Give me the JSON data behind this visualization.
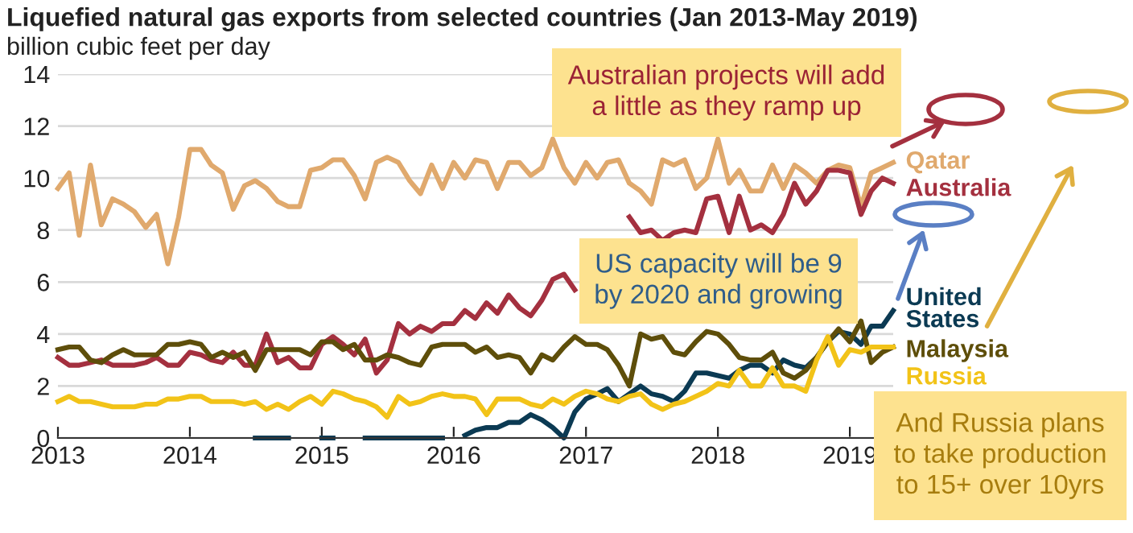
{
  "chart_data": {
    "type": "line",
    "title": "Liquefied natural gas exports from selected countries (Jan 2013-May 2019)",
    "ylabel": "billion cubic feet per day",
    "x": [
      "2013-01",
      "2013-02",
      "2013-03",
      "2013-04",
      "2013-05",
      "2013-06",
      "2013-07",
      "2013-08",
      "2013-09",
      "2013-10",
      "2013-11",
      "2013-12",
      "2014-01",
      "2014-02",
      "2014-03",
      "2014-04",
      "2014-05",
      "2014-06",
      "2014-07",
      "2014-08",
      "2014-09",
      "2014-10",
      "2014-11",
      "2014-12",
      "2015-01",
      "2015-02",
      "2015-03",
      "2015-04",
      "2015-05",
      "2015-06",
      "2015-07",
      "2015-08",
      "2015-09",
      "2015-10",
      "2015-11",
      "2015-12",
      "2016-01",
      "2016-02",
      "2016-03",
      "2016-04",
      "2016-05",
      "2016-06",
      "2016-07",
      "2016-08",
      "2016-09",
      "2016-10",
      "2016-11",
      "2016-12",
      "2017-01",
      "2017-02",
      "2017-03",
      "2017-04",
      "2017-05",
      "2017-06",
      "2017-07",
      "2017-08",
      "2017-09",
      "2017-10",
      "2017-11",
      "2017-12",
      "2018-01",
      "2018-02",
      "2018-03",
      "2018-04",
      "2018-05",
      "2018-06",
      "2018-07",
      "2018-08",
      "2018-09",
      "2018-10",
      "2018-11",
      "2018-12",
      "2019-01",
      "2019-02",
      "2019-03",
      "2019-04",
      "2019-05"
    ],
    "series": [
      {
        "name": "Qatar",
        "color": "#e0a96d",
        "values": [
          9.6,
          10.2,
          7.8,
          10.5,
          8.2,
          9.2,
          9.0,
          8.7,
          8.1,
          8.6,
          6.7,
          8.5,
          11.1,
          11.1,
          10.5,
          10.2,
          8.8,
          9.7,
          9.9,
          9.6,
          9.1,
          8.9,
          8.9,
          10.3,
          10.4,
          10.7,
          10.7,
          10.1,
          9.2,
          10.6,
          10.8,
          10.6,
          9.9,
          9.4,
          10.5,
          9.6,
          10.6,
          10.0,
          10.7,
          10.6,
          9.6,
          10.6,
          10.6,
          10.1,
          10.4,
          11.5,
          10.4,
          9.8,
          10.6,
          10.0,
          10.6,
          10.7,
          9.8,
          9.5,
          9.0,
          10.7,
          10.5,
          10.7,
          9.6,
          10.0,
          11.5,
          9.8,
          10.3,
          9.5,
          9.5,
          10.5,
          9.6,
          10.5,
          10.2,
          9.8,
          10.3,
          10.5,
          10.4,
          8.9,
          10.2,
          10.4,
          10.6
        ]
      },
      {
        "name": "Australia",
        "color": "#a4303f",
        "values": [
          3.1,
          2.8,
          2.8,
          2.9,
          3.0,
          2.8,
          2.8,
          2.8,
          2.9,
          3.1,
          2.8,
          2.8,
          3.3,
          3.2,
          3.0,
          2.9,
          3.3,
          2.8,
          2.8,
          4.0,
          2.9,
          3.1,
          2.7,
          2.7,
          3.6,
          3.9,
          3.6,
          3.2,
          3.8,
          2.5,
          3.0,
          4.4,
          4.0,
          4.3,
          4.1,
          4.4,
          4.4,
          4.9,
          4.6,
          5.2,
          4.8,
          5.5,
          5.0,
          4.7,
          5.3,
          6.1,
          6.3,
          5.7,
          null,
          null,
          null,
          null,
          8.5,
          7.9,
          8.0,
          7.6,
          7.9,
          8.0,
          7.9,
          9.2,
          9.3,
          7.9,
          9.3,
          8.0,
          8.2,
          7.9,
          8.6,
          9.8,
          9.0,
          9.5,
          10.3,
          10.3,
          10.2,
          8.6,
          9.5,
          10.0,
          9.8
        ]
      },
      {
        "name": "United\nStates",
        "color": "#0b3a53",
        "values": [
          null,
          null,
          null,
          null,
          null,
          null,
          null,
          null,
          null,
          null,
          null,
          null,
          null,
          null,
          null,
          null,
          null,
          null,
          0,
          0,
          0,
          0,
          null,
          null,
          0,
          0,
          null,
          null,
          0,
          0,
          0,
          0,
          0,
          0,
          0,
          0,
          null,
          0.1,
          0.3,
          0.4,
          0.4,
          0.6,
          0.6,
          0.9,
          0.7,
          0.4,
          0,
          1.0,
          1.5,
          1.7,
          1.9,
          1.4,
          1.7,
          2.0,
          1.7,
          1.6,
          1.4,
          1.8,
          2.5,
          2.5,
          2.4,
          2.3,
          2.6,
          2.8,
          2.8,
          2.5,
          3.0,
          2.8,
          2.7,
          3.1,
          3.7,
          4.1,
          4.0,
          3.6,
          4.3,
          4.3,
          4.9
        ]
      },
      {
        "name": "Malaysia",
        "color": "#5e4e0a",
        "values": [
          3.4,
          3.5,
          3.5,
          3.0,
          2.9,
          3.2,
          3.4,
          3.2,
          3.2,
          3.2,
          3.6,
          3.6,
          3.7,
          3.6,
          3.1,
          3.3,
          3.1,
          3.3,
          2.6,
          3.4,
          3.4,
          3.4,
          3.4,
          3.2,
          3.7,
          3.7,
          3.4,
          3.6,
          3.0,
          3.0,
          3.2,
          3.1,
          2.9,
          2.8,
          3.5,
          3.6,
          3.6,
          3.6,
          3.3,
          3.5,
          3.1,
          3.2,
          3.1,
          2.5,
          3.2,
          3.0,
          3.5,
          3.9,
          3.6,
          3.6,
          3.4,
          2.8,
          2.0,
          4.0,
          3.8,
          3.9,
          3.3,
          3.2,
          3.7,
          4.1,
          4.0,
          3.6,
          3.1,
          3.0,
          3.0,
          3.3,
          2.5,
          2.3,
          2.6,
          3.1,
          3.7,
          4.2,
          3.7,
          4.5,
          2.9,
          3.3,
          3.5
        ]
      },
      {
        "name": "Russia",
        "color": "#f2c318",
        "values": [
          1.4,
          1.6,
          1.4,
          1.4,
          1.3,
          1.2,
          1.2,
          1.2,
          1.3,
          1.3,
          1.5,
          1.5,
          1.6,
          1.6,
          1.4,
          1.4,
          1.4,
          1.3,
          1.4,
          1.1,
          1.3,
          1.1,
          1.4,
          1.6,
          1.3,
          1.8,
          1.7,
          1.5,
          1.4,
          1.2,
          0.8,
          1.6,
          1.3,
          1.4,
          1.6,
          1.7,
          1.6,
          1.6,
          1.5,
          0.9,
          1.5,
          1.5,
          1.5,
          1.3,
          1.2,
          1.5,
          1.3,
          1.6,
          1.8,
          1.7,
          1.5,
          1.4,
          1.6,
          1.7,
          1.3,
          1.1,
          1.3,
          1.4,
          1.6,
          1.8,
          2.1,
          2.0,
          2.6,
          2.0,
          2.0,
          2.7,
          2.0,
          2.0,
          1.8,
          3.0,
          3.9,
          2.8,
          3.4,
          3.3,
          3.5,
          3.5,
          3.5
        ]
      }
    ],
    "xlim": [
      "2013-01",
      "2019-05"
    ],
    "xticks": [
      {
        "value": "2013-01",
        "label": "2013"
      },
      {
        "value": "2014-01",
        "label": "2014"
      },
      {
        "value": "2015-01",
        "label": "2015"
      },
      {
        "value": "2016-01",
        "label": "2016"
      },
      {
        "value": "2017-01",
        "label": "2017"
      },
      {
        "value": "2018-01",
        "label": "2018"
      },
      {
        "value": "2019-01",
        "label": "2019"
      }
    ],
    "ylim": [
      0,
      14
    ],
    "yticks": [
      0,
      2,
      4,
      6,
      8,
      10,
      12,
      14
    ],
    "grid": "y",
    "legend": false,
    "annotations": [
      "Australian projects will add\na little as they ramp up",
      "US capacity will be 9\nby 2020 and growing",
      "And Russia plans\nto take production\nto 15+ over 10yrs"
    ]
  }
}
